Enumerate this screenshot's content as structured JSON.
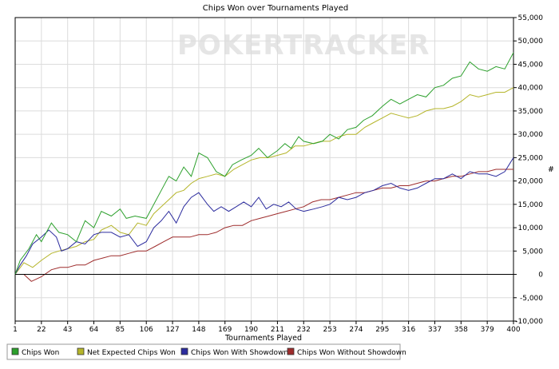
{
  "chart_data": {
    "type": "line",
    "title": "Chips Won over Tournaments Played",
    "xlabel": "Tournaments Played",
    "ylabel": "#",
    "xlim": [
      1,
      400
    ],
    "ylim": [
      -10000,
      55000
    ],
    "x_ticks": [
      1,
      22,
      43,
      64,
      85,
      106,
      127,
      148,
      169,
      190,
      211,
      232,
      253,
      274,
      295,
      316,
      337,
      358,
      379,
      400
    ],
    "y_ticks": [
      -10000,
      -5000,
      0,
      5000,
      10000,
      15000,
      20000,
      25000,
      30000,
      35000,
      40000,
      45000,
      50000,
      55000
    ],
    "y_tick_labels": [
      "-10,000",
      "-5,000",
      "0",
      "5,000",
      "10,000",
      "15,000",
      "20,000",
      "25,000",
      "30,000",
      "35,000",
      "40,000",
      "45,000",
      "50,000",
      "55,000"
    ],
    "grid": true,
    "legend_position": "bottom",
    "watermark": "POKERTRACKER",
    "series": [
      {
        "name": "Chips Won",
        "color": "#2ca02c",
        "points": [
          [
            1,
            0
          ],
          [
            5,
            3000
          ],
          [
            12,
            5500
          ],
          [
            18,
            8500
          ],
          [
            22,
            7000
          ],
          [
            30,
            11000
          ],
          [
            36,
            9000
          ],
          [
            43,
            8500
          ],
          [
            50,
            7000
          ],
          [
            57,
            11500
          ],
          [
            64,
            10000
          ],
          [
            70,
            13500
          ],
          [
            78,
            12500
          ],
          [
            85,
            14000
          ],
          [
            90,
            12000
          ],
          [
            97,
            12500
          ],
          [
            106,
            12000
          ],
          [
            112,
            15000
          ],
          [
            118,
            18000
          ],
          [
            124,
            21000
          ],
          [
            130,
            20000
          ],
          [
            136,
            23000
          ],
          [
            142,
            21000
          ],
          [
            148,
            26000
          ],
          [
            155,
            25000
          ],
          [
            162,
            22000
          ],
          [
            169,
            21000
          ],
          [
            175,
            23500
          ],
          [
            182,
            24500
          ],
          [
            190,
            25500
          ],
          [
            196,
            27000
          ],
          [
            203,
            25000
          ],
          [
            211,
            26500
          ],
          [
            217,
            28000
          ],
          [
            222,
            27000
          ],
          [
            228,
            29500
          ],
          [
            232,
            28500
          ],
          [
            240,
            28000
          ],
          [
            247,
            28500
          ],
          [
            253,
            30000
          ],
          [
            260,
            29000
          ],
          [
            267,
            31000
          ],
          [
            274,
            31500
          ],
          [
            280,
            33000
          ],
          [
            287,
            34000
          ],
          [
            295,
            36000
          ],
          [
            302,
            37500
          ],
          [
            309,
            36500
          ],
          [
            316,
            37500
          ],
          [
            323,
            38500
          ],
          [
            330,
            38000
          ],
          [
            337,
            40000
          ],
          [
            344,
            40500
          ],
          [
            351,
            42000
          ],
          [
            358,
            42500
          ],
          [
            365,
            45500
          ],
          [
            372,
            44000
          ],
          [
            379,
            43500
          ],
          [
            386,
            44500
          ],
          [
            393,
            44000
          ],
          [
            400,
            47500
          ]
        ]
      },
      {
        "name": "Net Expected Chips Won",
        "color": "#b5b52a",
        "points": [
          [
            1,
            0
          ],
          [
            8,
            2500
          ],
          [
            15,
            1500
          ],
          [
            22,
            3000
          ],
          [
            30,
            4500
          ],
          [
            36,
            5000
          ],
          [
            43,
            5500
          ],
          [
            50,
            6000
          ],
          [
            57,
            7000
          ],
          [
            64,
            7500
          ],
          [
            70,
            9500
          ],
          [
            78,
            10500
          ],
          [
            85,
            9000
          ],
          [
            92,
            8500
          ],
          [
            99,
            11000
          ],
          [
            106,
            10500
          ],
          [
            112,
            13000
          ],
          [
            118,
            14500
          ],
          [
            124,
            16000
          ],
          [
            130,
            17500
          ],
          [
            136,
            18000
          ],
          [
            142,
            19500
          ],
          [
            148,
            20500
          ],
          [
            155,
            21000
          ],
          [
            162,
            21500
          ],
          [
            169,
            21000
          ],
          [
            176,
            22500
          ],
          [
            183,
            23500
          ],
          [
            190,
            24500
          ],
          [
            197,
            25000
          ],
          [
            204,
            25000
          ],
          [
            211,
            25500
          ],
          [
            218,
            26000
          ],
          [
            225,
            27500
          ],
          [
            232,
            27500
          ],
          [
            239,
            28000
          ],
          [
            246,
            28500
          ],
          [
            253,
            28500
          ],
          [
            260,
            29500
          ],
          [
            267,
            30000
          ],
          [
            274,
            30000
          ],
          [
            281,
            31500
          ],
          [
            288,
            32500
          ],
          [
            295,
            33500
          ],
          [
            302,
            34500
          ],
          [
            309,
            34000
          ],
          [
            316,
            33500
          ],
          [
            323,
            34000
          ],
          [
            330,
            35000
          ],
          [
            337,
            35500
          ],
          [
            344,
            35500
          ],
          [
            351,
            36000
          ],
          [
            358,
            37000
          ],
          [
            365,
            38500
          ],
          [
            372,
            38000
          ],
          [
            379,
            38500
          ],
          [
            386,
            39000
          ],
          [
            393,
            39000
          ],
          [
            400,
            40000
          ]
        ]
      },
      {
        "name": "Chips Won With Showdown",
        "color": "#2c2c9e",
        "points": [
          [
            1,
            0
          ],
          [
            5,
            2000
          ],
          [
            10,
            4000
          ],
          [
            15,
            6500
          ],
          [
            22,
            8000
          ],
          [
            28,
            9500
          ],
          [
            34,
            8000
          ],
          [
            38,
            5000
          ],
          [
            43,
            5500
          ],
          [
            50,
            7000
          ],
          [
            57,
            6500
          ],
          [
            64,
            8500
          ],
          [
            70,
            9000
          ],
          [
            78,
            9000
          ],
          [
            85,
            8000
          ],
          [
            92,
            8500
          ],
          [
            99,
            6000
          ],
          [
            106,
            7000
          ],
          [
            112,
            10000
          ],
          [
            118,
            11500
          ],
          [
            124,
            13500
          ],
          [
            130,
            11000
          ],
          [
            136,
            14500
          ],
          [
            142,
            16500
          ],
          [
            148,
            17500
          ],
          [
            155,
            15000
          ],
          [
            160,
            13500
          ],
          [
            166,
            14500
          ],
          [
            172,
            13500
          ],
          [
            178,
            14500
          ],
          [
            184,
            15500
          ],
          [
            190,
            14500
          ],
          [
            196,
            16500
          ],
          [
            202,
            14000
          ],
          [
            208,
            15000
          ],
          [
            214,
            14500
          ],
          [
            220,
            15500
          ],
          [
            226,
            14000
          ],
          [
            232,
            13500
          ],
          [
            240,
            14000
          ],
          [
            247,
            14500
          ],
          [
            253,
            15000
          ],
          [
            260,
            16500
          ],
          [
            267,
            16000
          ],
          [
            274,
            16500
          ],
          [
            281,
            17500
          ],
          [
            288,
            18000
          ],
          [
            295,
            19000
          ],
          [
            302,
            19500
          ],
          [
            309,
            18500
          ],
          [
            316,
            18000
          ],
          [
            323,
            18500
          ],
          [
            330,
            19500
          ],
          [
            337,
            20500
          ],
          [
            344,
            20500
          ],
          [
            351,
            21500
          ],
          [
            358,
            20500
          ],
          [
            365,
            22000
          ],
          [
            372,
            21500
          ],
          [
            379,
            21500
          ],
          [
            386,
            21000
          ],
          [
            393,
            22000
          ],
          [
            400,
            25000
          ]
        ]
      },
      {
        "name": "Chips Won Without Showdown",
        "color": "#9e2c2c",
        "points": [
          [
            1,
            0
          ],
          [
            8,
            0
          ],
          [
            14,
            -1500
          ],
          [
            22,
            -500
          ],
          [
            30,
            1000
          ],
          [
            37,
            1500
          ],
          [
            43,
            1500
          ],
          [
            50,
            2000
          ],
          [
            57,
            2000
          ],
          [
            64,
            3000
          ],
          [
            71,
            3500
          ],
          [
            78,
            4000
          ],
          [
            85,
            4000
          ],
          [
            92,
            4500
          ],
          [
            99,
            5000
          ],
          [
            106,
            5000
          ],
          [
            113,
            6000
          ],
          [
            120,
            7000
          ],
          [
            127,
            8000
          ],
          [
            134,
            8000
          ],
          [
            141,
            8000
          ],
          [
            148,
            8500
          ],
          [
            155,
            8500
          ],
          [
            162,
            9000
          ],
          [
            169,
            10000
          ],
          [
            176,
            10500
          ],
          [
            183,
            10500
          ],
          [
            190,
            11500
          ],
          [
            197,
            12000
          ],
          [
            204,
            12500
          ],
          [
            211,
            13000
          ],
          [
            218,
            13500
          ],
          [
            225,
            14000
          ],
          [
            232,
            14500
          ],
          [
            239,
            15500
          ],
          [
            246,
            16000
          ],
          [
            253,
            16000
          ],
          [
            260,
            16500
          ],
          [
            267,
            17000
          ],
          [
            274,
            17500
          ],
          [
            281,
            17500
          ],
          [
            288,
            18000
          ],
          [
            295,
            18500
          ],
          [
            302,
            18500
          ],
          [
            309,
            19000
          ],
          [
            316,
            19000
          ],
          [
            323,
            19500
          ],
          [
            330,
            20000
          ],
          [
            337,
            20000
          ],
          [
            344,
            20500
          ],
          [
            351,
            21000
          ],
          [
            358,
            21000
          ],
          [
            365,
            21500
          ],
          [
            372,
            22000
          ],
          [
            379,
            22000
          ],
          [
            386,
            22500
          ],
          [
            393,
            22500
          ],
          [
            400,
            22500
          ]
        ]
      }
    ]
  }
}
